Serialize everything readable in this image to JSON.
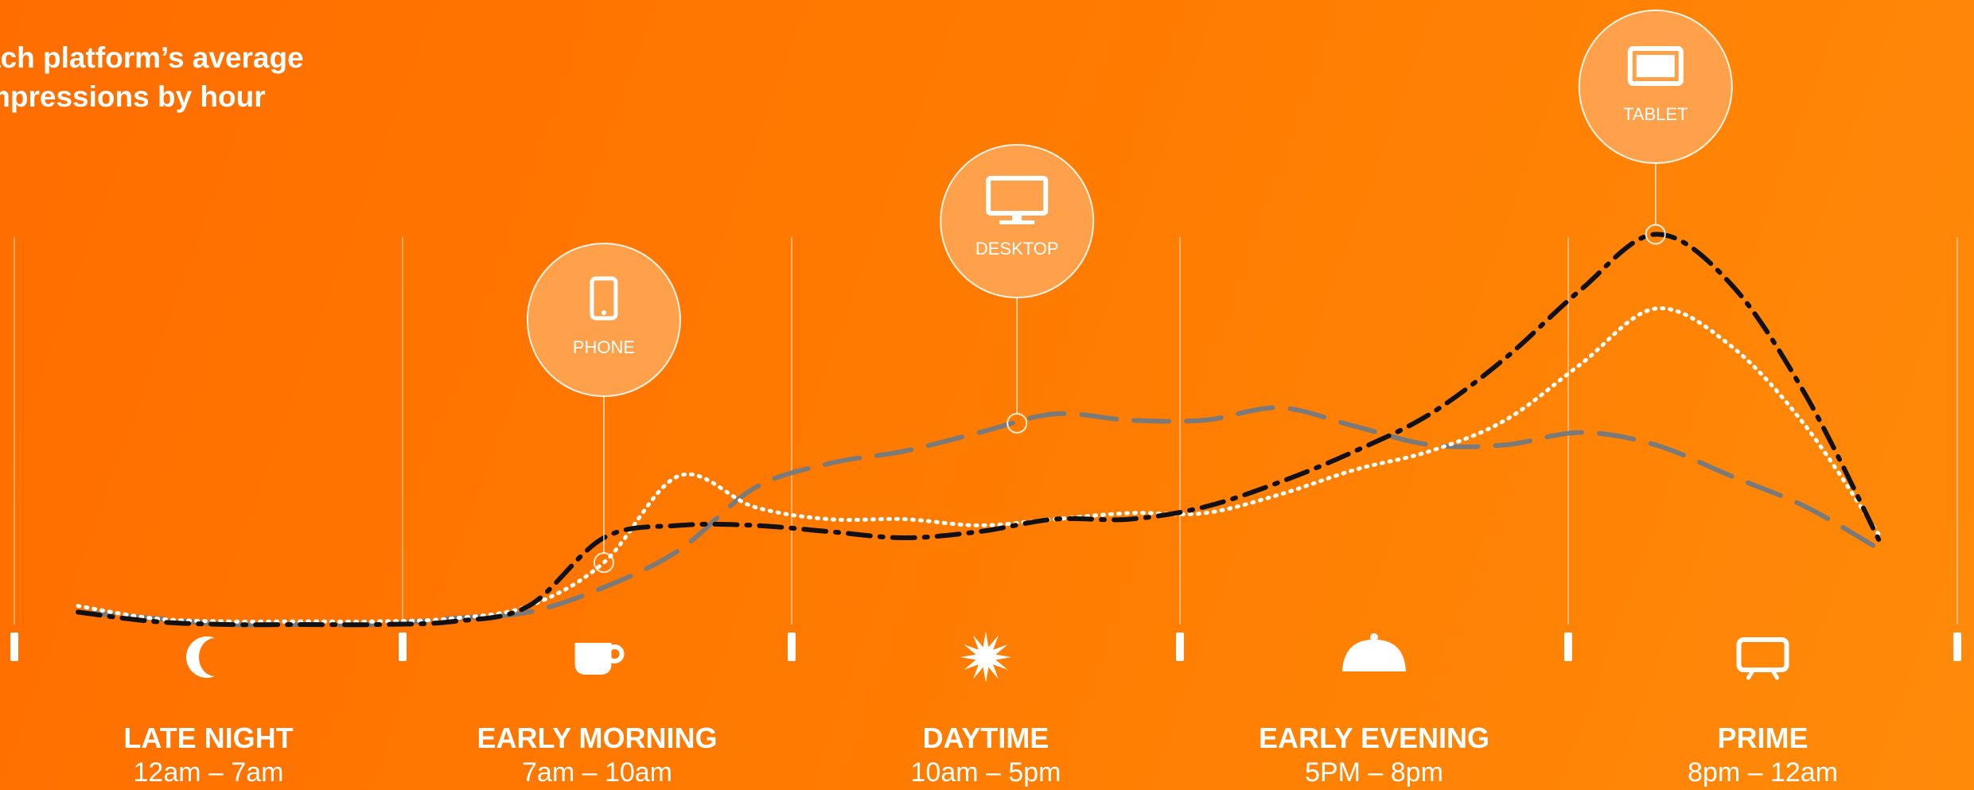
{
  "title": {
    "line1": "ach platform’s average",
    "line2": "mpressions by hour"
  },
  "colors": {
    "background": "#ff7a00",
    "phone": "#ffffff",
    "desktop": "#7a7a7a",
    "tablet": "#111111",
    "bubble": "#ffa04a"
  },
  "chart_data": {
    "type": "line",
    "x": [
      0,
      1,
      2,
      3,
      4,
      5,
      6,
      7,
      8,
      9,
      10,
      11,
      12,
      13,
      14,
      15,
      16,
      17,
      18,
      19,
      20,
      21,
      22,
      23,
      24
    ],
    "series": [
      {
        "name": "PHONE",
        "style": "dotted",
        "values": [
          3,
          1,
          0.5,
          0.5,
          0.5,
          1,
          3,
          10,
          24,
          19,
          17,
          17,
          16,
          17,
          18,
          18,
          21,
          25,
          28,
          33,
          42,
          51,
          45,
          32,
          14
        ]
      },
      {
        "name": "DESKTOP",
        "style": "dashed",
        "values": [
          2,
          1,
          0,
          0,
          0,
          1,
          2,
          6,
          12,
          22,
          26,
          28,
          31,
          34,
          33,
          33,
          35,
          32,
          29,
          29,
          31,
          29,
          24,
          19,
          12
        ]
      },
      {
        "name": "TABLET",
        "style": "dash-dot",
        "values": [
          2,
          0.5,
          0,
          0,
          0,
          0.5,
          3,
          14,
          16,
          16,
          15,
          14,
          15,
          17,
          17,
          19,
          23,
          28,
          34,
          43,
          54,
          63,
          55,
          37,
          13
        ]
      }
    ],
    "annotations": [
      {
        "label": "PHONE",
        "series": "PHONE",
        "x": 7,
        "icon": "phone-icon"
      },
      {
        "label": "DESKTOP",
        "series": "DESKTOP",
        "x": 12.5,
        "icon": "monitor-icon"
      },
      {
        "label": "TABLET",
        "series": "TABLET",
        "x": 21,
        "icon": "tablet-icon"
      }
    ],
    "ylim": [
      0,
      70
    ],
    "xlim": [
      0,
      24
    ],
    "segments": [
      {
        "name": "LATE NIGHT",
        "hours": "12am – 7am",
        "icon": "moon-icon"
      },
      {
        "name": "EARLY MORNING",
        "hours": "7am – 10am",
        "icon": "coffee-cup-icon"
      },
      {
        "name": "DAYTIME",
        "hours": "10am – 5pm",
        "icon": "sun-icon"
      },
      {
        "name": "EARLY EVENING",
        "hours": "5PM – 8pm",
        "icon": "food-cloche-icon"
      },
      {
        "name": "PRIME",
        "hours": "8pm – 12am",
        "icon": "tv-icon"
      }
    ]
  }
}
